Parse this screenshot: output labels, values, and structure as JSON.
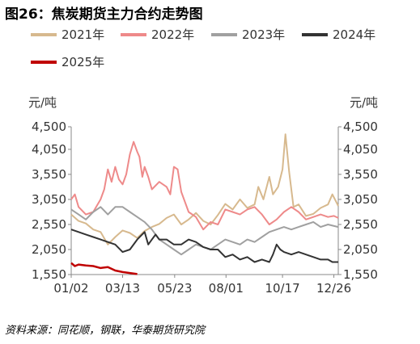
{
  "header": {
    "title": "图26：焦炭期货主力合约走势图",
    "source": "资料来源：同花顺，钢联，华泰期货研究院"
  },
  "chart_data": {
    "type": "line",
    "ylabel_left": "元/吨",
    "ylabel_right": "元/吨",
    "ylim": [
      1550,
      4500
    ],
    "yticks": [
      "4,500",
      "4,050",
      "3,550",
      "3,050",
      "2,550",
      "2,050",
      "1,550"
    ],
    "ytick_values": [
      4500,
      4050,
      3550,
      3050,
      2550,
      2050,
      1550
    ],
    "xticks": [
      "01/02",
      "03/13",
      "05/23",
      "08/01",
      "10/17",
      "12/26"
    ],
    "xtick_days": [
      0,
      70,
      141,
      211,
      288,
      358
    ],
    "xlim": [
      0,
      364
    ],
    "series": [
      {
        "name": "2021年",
        "color": "#d7b98e",
        "x": [
          0,
          10,
          20,
          30,
          40,
          50,
          60,
          70,
          80,
          90,
          100,
          110,
          120,
          130,
          140,
          150,
          160,
          170,
          180,
          190,
          200,
          210,
          220,
          230,
          240,
          250,
          255,
          262,
          270,
          275,
          282,
          288,
          292,
          297,
          303,
          310,
          320,
          330,
          340,
          350,
          356,
          364
        ],
        "y": [
          2750,
          2620,
          2570,
          2450,
          2400,
          2150,
          2300,
          2430,
          2380,
          2280,
          2420,
          2500,
          2560,
          2680,
          2750,
          2550,
          2650,
          2780,
          2620,
          2550,
          2740,
          2960,
          2850,
          3050,
          2880,
          2950,
          3300,
          3050,
          3500,
          3150,
          3300,
          3650,
          4350,
          3600,
          2900,
          2950,
          2720,
          2760,
          2880,
          2950,
          3150,
          2920
        ]
      },
      {
        "name": "2022年",
        "color": "#ee8a8a",
        "x": [
          0,
          5,
          10,
          20,
          30,
          40,
          45,
          50,
          55,
          60,
          65,
          70,
          75,
          80,
          85,
          90,
          93,
          97,
          100,
          105,
          110,
          120,
          130,
          135,
          140,
          145,
          150,
          160,
          170,
          180,
          190,
          200,
          210,
          220,
          230,
          240,
          250,
          260,
          270,
          280,
          290,
          300,
          310,
          320,
          330,
          340,
          350,
          358,
          364
        ],
        "y": [
          3050,
          3150,
          2900,
          2750,
          2800,
          3050,
          3250,
          3650,
          3400,
          3700,
          3450,
          3350,
          3550,
          3950,
          4200,
          4000,
          3900,
          3500,
          3700,
          3500,
          3250,
          3400,
          3300,
          3150,
          3700,
          3650,
          3200,
          2800,
          2700,
          2450,
          2600,
          2550,
          2850,
          2800,
          2750,
          2850,
          2900,
          2750,
          2550,
          2650,
          2800,
          2900,
          2800,
          2650,
          2700,
          2750,
          2700,
          2720,
          2680
        ]
      },
      {
        "name": "2023年",
        "color": "#a0a0a0",
        "x": [
          0,
          10,
          20,
          30,
          40,
          50,
          60,
          70,
          80,
          90,
          100,
          110,
          120,
          130,
          140,
          150,
          160,
          170,
          180,
          190,
          200,
          210,
          220,
          230,
          240,
          250,
          260,
          270,
          280,
          290,
          300,
          310,
          320,
          330,
          340,
          350,
          364
        ],
        "y": [
          2850,
          2750,
          2650,
          2800,
          2900,
          2750,
          2900,
          2900,
          2800,
          2700,
          2600,
          2450,
          2250,
          2150,
          2050,
          1950,
          2050,
          2150,
          2100,
          2050,
          2150,
          2250,
          2200,
          2150,
          2250,
          2200,
          2300,
          2400,
          2450,
          2500,
          2450,
          2500,
          2550,
          2600,
          2500,
          2550,
          2500
        ]
      },
      {
        "name": "2024年",
        "color": "#333333",
        "x": [
          0,
          10,
          20,
          30,
          40,
          50,
          60,
          70,
          80,
          90,
          100,
          105,
          110,
          115,
          120,
          130,
          140,
          150,
          160,
          170,
          180,
          190,
          200,
          210,
          220,
          230,
          240,
          250,
          260,
          270,
          275,
          280,
          285,
          290,
          300,
          310,
          320,
          330,
          340,
          350,
          356,
          364
        ],
        "y": [
          2450,
          2400,
          2350,
          2300,
          2250,
          2200,
          2150,
          2000,
          2050,
          2250,
          2400,
          2150,
          2250,
          2350,
          2250,
          2250,
          2150,
          2150,
          2250,
          2200,
          2100,
          2050,
          2050,
          1900,
          1950,
          1850,
          1900,
          1800,
          1850,
          1800,
          1950,
          2150,
          2050,
          2000,
          1950,
          2000,
          1950,
          1900,
          1850,
          1850,
          1800,
          1800
        ]
      },
      {
        "name": "2025年",
        "color": "#c00000",
        "x": [
          0,
          5,
          10,
          20,
          30,
          40,
          50,
          60,
          70,
          80,
          90
        ],
        "y": [
          1780,
          1720,
          1750,
          1730,
          1720,
          1680,
          1700,
          1630,
          1600,
          1580,
          1560
        ]
      }
    ]
  }
}
